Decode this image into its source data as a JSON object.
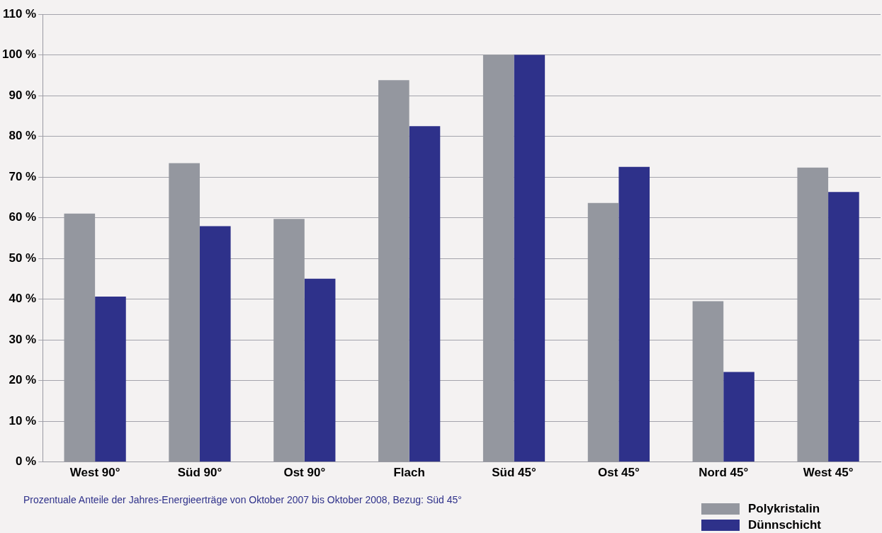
{
  "chart_data": {
    "type": "bar",
    "categories": [
      "West 90°",
      "Süd 90°",
      "Ost 90°",
      "Flach",
      "Süd 45°",
      "Ost 45°",
      "Nord 45°",
      "West 45°"
    ],
    "series": [
      {
        "name": "Polykristalin",
        "color": "#94979f",
        "values": [
          61,
          73.4,
          59.7,
          93.8,
          100,
          63.6,
          39.5,
          72.3
        ]
      },
      {
        "name": "Dünnschicht",
        "color": "#2e318a",
        "values": [
          40.6,
          57.9,
          45,
          82.5,
          100,
          72.5,
          22.1,
          66.3
        ]
      }
    ],
    "ylim": [
      0,
      110
    ],
    "yticks": [
      {
        "value": 0,
        "label": "0 %"
      },
      {
        "value": 10,
        "label": "10 %"
      },
      {
        "value": 20,
        "label": "20 %"
      },
      {
        "value": 30,
        "label": "30 %"
      },
      {
        "value": 40,
        "label": "40 %"
      },
      {
        "value": 50,
        "label": "50 %"
      },
      {
        "value": 60,
        "label": "60 %"
      },
      {
        "value": 70,
        "label": "70 %"
      },
      {
        "value": 80,
        "label": "80 %"
      },
      {
        "value": 90,
        "label": "90 %"
      },
      {
        "value": 100,
        "label": "100 %"
      },
      {
        "value": 110,
        "label": "110 %"
      }
    ],
    "grid": "y",
    "legend": "bottom right",
    "annotations": [
      "Prozentuale Anteile der Jahres-Energieerträge von Oktober 2007 bis Oktober 2008, Bezug: Süd 45°"
    ]
  }
}
